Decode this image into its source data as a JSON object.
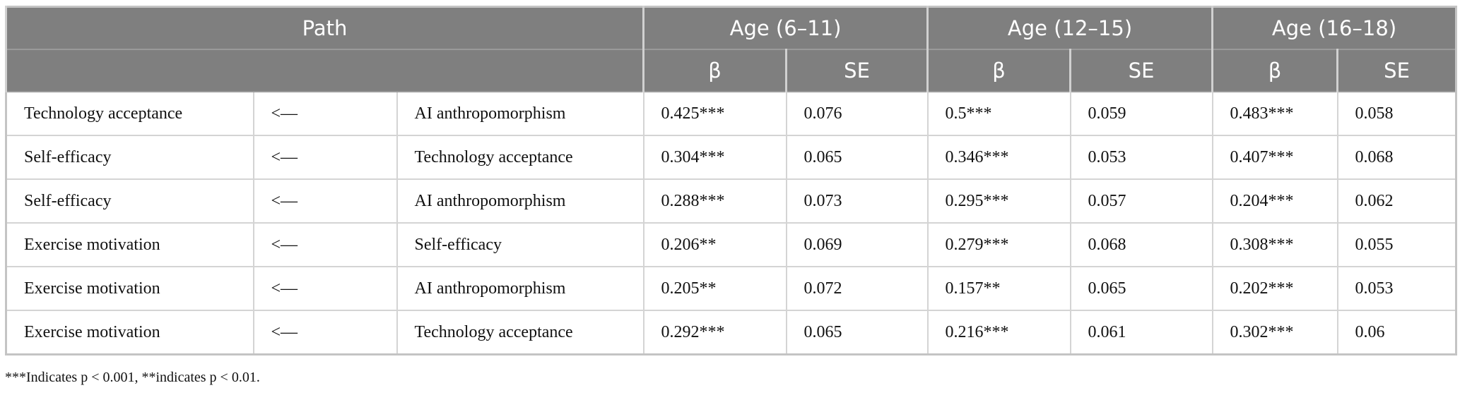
{
  "header": {
    "title": "Path",
    "groups": [
      "Age (6–11)",
      "Age (12–15)",
      "Age (16–18)"
    ],
    "subheaders": [
      "β",
      "SE",
      "β",
      "SE",
      "β",
      "SE"
    ]
  },
  "table": {
    "rows": [
      [
        "Technology acceptance",
        "<—",
        "AI anthropomorphism",
        "0.425***",
        "0.076",
        "0.5***",
        "0.059",
        "0.483***",
        "0.058"
      ],
      [
        "Self-efficacy",
        "<—",
        "Technology acceptance",
        "0.304***",
        "0.065",
        "0.346***",
        "0.053",
        "0.407***",
        "0.068"
      ],
      [
        "Self-efficacy",
        "<—",
        "AI anthropomorphism",
        "0.288***",
        "0.073",
        "0.295***",
        "0.057",
        "0.204***",
        "0.062"
      ],
      [
        "Exercise motivation",
        "<—",
        "Self-efficacy",
        "0.206**",
        "0.069",
        "0.279***",
        "0.068",
        "0.308***",
        "0.055"
      ],
      [
        "Exercise motivation",
        "<—",
        "AI anthropomorphism",
        "0.205**",
        "0.072",
        "0.157**",
        "0.065",
        "0.202***",
        "0.053"
      ],
      [
        "Exercise motivation",
        "<—",
        "Technology acceptance",
        "0.292***",
        "0.065",
        "0.216***",
        "0.061",
        "0.302***",
        "0.06"
      ]
    ]
  },
  "footnote": "***Indicates p < 0.001, **indicates p < 0.01."
}
